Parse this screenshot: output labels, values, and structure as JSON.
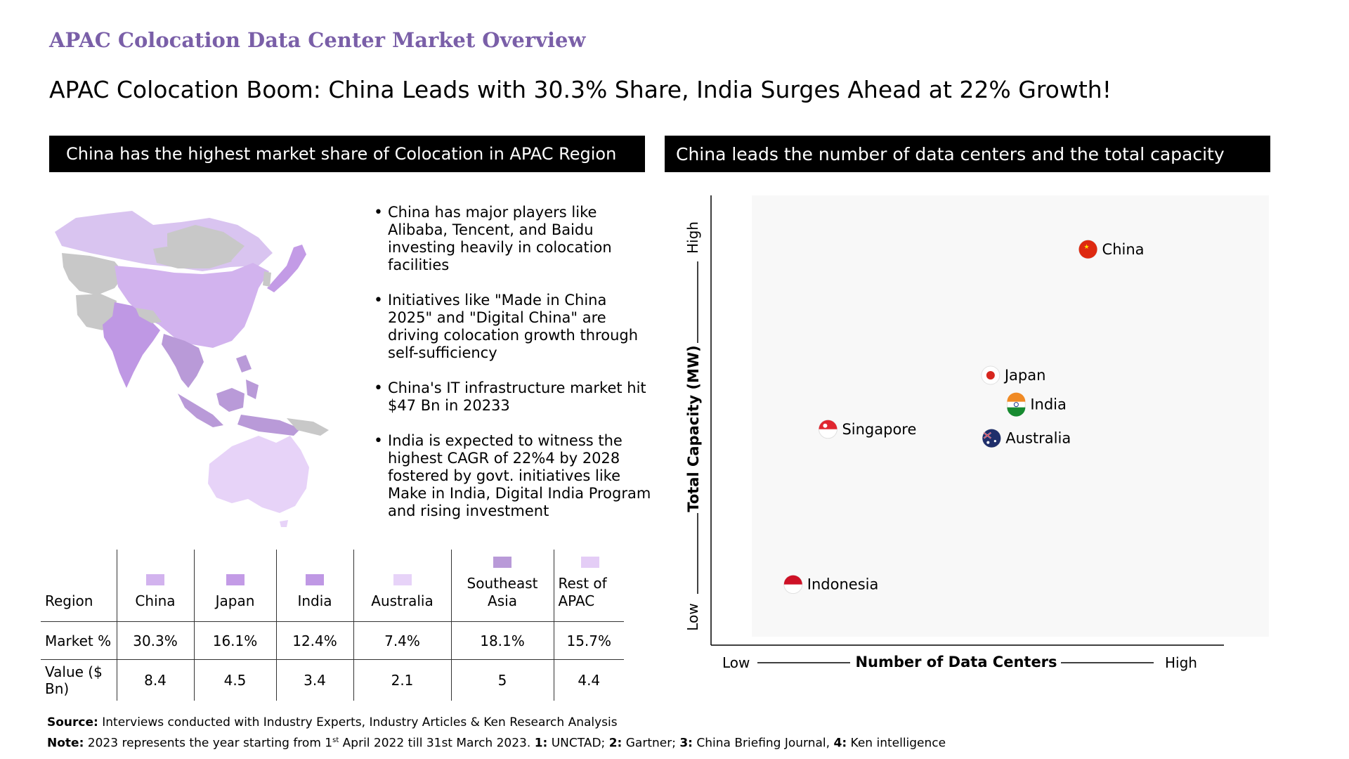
{
  "overline": "APAC Colocation Data Center Market Overview",
  "headline": "APAC Colocation Boom: China Leads with 30.3% Share, India Surges Ahead at 22% Growth!",
  "left_banner": "China has the highest market share of Colocation in APAC Region",
  "right_banner": "China leads the number of data centers and the total capacity",
  "bullets": [
    "China has major players like Alibaba, Tencent, and Baidu investing heavily in colocation facilities",
    "Initiatives like \"Made in China 2025\" and \"Digital China\" are driving colocation growth through self-sufficiency",
    "China's IT infrastructure market hit $47 Bn in 20233",
    "India is expected to witness the highest CAGR of 22%4 by 2028 fostered by govt. initiatives like Make in India, Digital India Program and rising investment"
  ],
  "colors": {
    "china": "#d2b3ee",
    "japan": "#c39be6",
    "india": "#bf98e4",
    "australia": "#e7d3f8",
    "southeast_asia": "#b99ad8",
    "rest_apac": "#e4cdf6",
    "other_land": "#c8c8c8",
    "accent": "#7a5fa8"
  },
  "table": {
    "header_label": "Region",
    "columns": [
      {
        "key": "china",
        "label": "China"
      },
      {
        "key": "japan",
        "label": "Japan"
      },
      {
        "key": "india",
        "label": "India"
      },
      {
        "key": "australia",
        "label": "Australia"
      },
      {
        "key": "southeast_asia",
        "label": "Southeast Asia"
      },
      {
        "key": "rest_apac",
        "label": "Rest of APAC"
      }
    ],
    "rows": [
      {
        "label": "Market %",
        "values": [
          "30.3%",
          "16.1%",
          "12.4%",
          "7.4%",
          "18.1%",
          "15.7%"
        ]
      },
      {
        "label": "Value ($ Bn)",
        "values": [
          "8.4",
          "4.5",
          "3.4",
          "2.1",
          "5",
          "4.4"
        ]
      }
    ]
  },
  "chart_data": {
    "type": "scatter",
    "title": "",
    "xlabel": "Number of Data Centers",
    "ylabel": "Total Capacity (MW)",
    "x_low_label": "Low",
    "x_high_label": "High",
    "y_low_label": "Low",
    "y_high_label": "High",
    "xlim": [
      0,
      100
    ],
    "ylim": [
      0,
      100
    ],
    "grid": false,
    "points": [
      {
        "name": "China",
        "flag": "china-flag-icon",
        "x": 73.5,
        "y": 88
      },
      {
        "name": "Japan",
        "flag": "japan-flag-icon",
        "x": 54.5,
        "y": 60
      },
      {
        "name": "India",
        "flag": "india-flag-icon",
        "x": 59.5,
        "y": 53.5
      },
      {
        "name": "Australia",
        "flag": "australia-flag-icon",
        "x": 54.7,
        "y": 46
      },
      {
        "name": "Singapore",
        "flag": "singapore-flag-icon",
        "x": 22.8,
        "y": 48
      },
      {
        "name": "Indonesia",
        "flag": "indonesia-flag-icon",
        "x": 16,
        "y": 13.5
      }
    ]
  },
  "source": {
    "source_label": "Source:",
    "source_text": "Interviews conducted with Industry Experts, Industry Articles & Ken Research Analysis",
    "note_label": "Note:",
    "note_text_1": "2023 represents the year starting from 1",
    "note_sup": "st",
    "note_text_2": "April 2022 till 31st March 2023.",
    "ref1_label": "1:",
    "ref1": "UNCTAD;",
    "ref2_label": "2:",
    "ref2": "Gartner;",
    "ref3_label": "3:",
    "ref3": "China Briefing Journal,",
    "ref4_label": "4:",
    "ref4": "Ken intelligence"
  }
}
